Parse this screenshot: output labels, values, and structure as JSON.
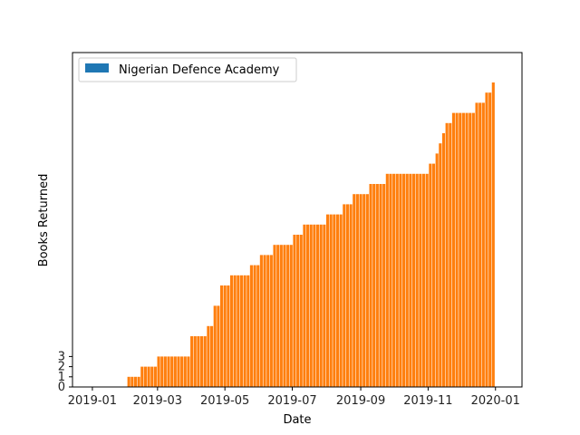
{
  "chart_data": {
    "type": "bar",
    "xlabel": "Date",
    "ylabel": "Books Returned",
    "x_tick_labels": [
      "2019-01",
      "2019-03",
      "2019-05",
      "2019-07",
      "2019-09",
      "2019-11",
      "2020-01"
    ],
    "y_tick_labels": [
      "0",
      "1",
      "2",
      "3"
    ],
    "ylim": [
      0,
      31
    ],
    "x_range": [
      "2018-12-14",
      "2020-01-25"
    ],
    "grid": false,
    "legend": {
      "placement": "top-left",
      "entries": [
        {
          "label": "Nigerian Defence Academy",
          "color": "#1f77b4"
        }
      ]
    },
    "bar_color": "#ff7f0e",
    "series": [
      {
        "name": "Nigerian Defence Academy",
        "points": [
          [
            "2019-02-01",
            1
          ],
          [
            "2019-02-15",
            2
          ],
          [
            "2019-03-01",
            3
          ],
          [
            "2019-04-01",
            5
          ],
          [
            "2019-04-15",
            6
          ],
          [
            "2019-04-22",
            8
          ],
          [
            "2019-04-28",
            10
          ],
          [
            "2019-05-05",
            11
          ],
          [
            "2019-05-25",
            12
          ],
          [
            "2019-06-01",
            13
          ],
          [
            "2019-06-15",
            14
          ],
          [
            "2019-07-01",
            15
          ],
          [
            "2019-07-10",
            16
          ],
          [
            "2019-07-20",
            16
          ],
          [
            "2019-08-01",
            17
          ],
          [
            "2019-08-15",
            18
          ],
          [
            "2019-08-25",
            19
          ],
          [
            "2019-09-01",
            19
          ],
          [
            "2019-09-10",
            20
          ],
          [
            "2019-09-25",
            21
          ],
          [
            "2019-10-01",
            21
          ],
          [
            "2019-10-20",
            21
          ],
          [
            "2019-11-01",
            22
          ],
          [
            "2019-11-08",
            23
          ],
          [
            "2019-11-12",
            24
          ],
          [
            "2019-11-15",
            25
          ],
          [
            "2019-11-18",
            26
          ],
          [
            "2019-11-22",
            27
          ],
          [
            "2019-11-28",
            27
          ],
          [
            "2019-12-10",
            27
          ],
          [
            "2019-12-15",
            28
          ],
          [
            "2019-12-22",
            29
          ],
          [
            "2019-12-28",
            30
          ],
          [
            "2020-01-01",
            31
          ]
        ]
      }
    ]
  }
}
